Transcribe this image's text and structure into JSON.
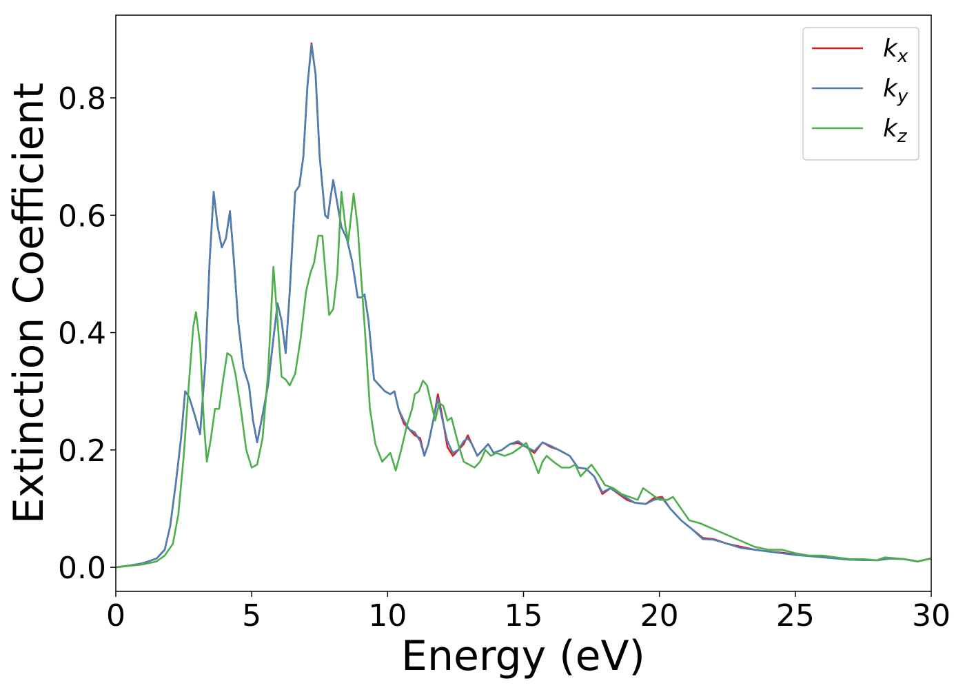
{
  "chart_data": {
    "type": "line",
    "xlabel": "Energy (eV)",
    "ylabel": "Extinction Coefficient",
    "xlim": [
      0,
      30
    ],
    "ylim": [
      -0.041,
      0.941
    ],
    "xticks": [
      0,
      5,
      10,
      15,
      20,
      25,
      30
    ],
    "yticks": [
      {
        "value": 0,
        "label": "0.0"
      },
      0.2,
      0.4,
      0.6,
      0.8
    ],
    "legend": "upper right",
    "series": [
      {
        "name": "kx",
        "color": "#e41a1c",
        "x": [
          0,
          0.5,
          1,
          1.5,
          1.8,
          2.0,
          2.2,
          2.4,
          2.55,
          2.7,
          2.9,
          3.1,
          3.3,
          3.45,
          3.6,
          3.75,
          3.9,
          4.05,
          4.2,
          4.35,
          4.5,
          4.7,
          4.9,
          5.05,
          5.2,
          5.4,
          5.6,
          5.8,
          5.95,
          6.1,
          6.25,
          6.4,
          6.6,
          6.75,
          6.9,
          7.05,
          7.2,
          7.35,
          7.5,
          7.7,
          7.8,
          7.9,
          8.0,
          8.15,
          8.3,
          8.5,
          8.7,
          8.9,
          9.05,
          9.15,
          9.3,
          9.5,
          9.7,
          9.9,
          10.1,
          10.25,
          10.4,
          10.6,
          10.8,
          11.0,
          11.2,
          11.35,
          11.5,
          11.7,
          11.85,
          12.0,
          12.2,
          12.4,
          12.6,
          12.8,
          12.95,
          13.1,
          13.3,
          13.5,
          13.7,
          13.9,
          14.2,
          14.5,
          14.8,
          15.1,
          15.4,
          15.7,
          16.0,
          16.3,
          16.7,
          17.0,
          17.3,
          17.6,
          17.9,
          18.2,
          18.5,
          18.8,
          19.1,
          19.5,
          19.8,
          20.1,
          20.4,
          20.8,
          21.2,
          21.6,
          22.0,
          22.5,
          23.0,
          23.5,
          24,
          24.5,
          25,
          26,
          27,
          28,
          28.5,
          29,
          29.5,
          30
        ],
        "values": [
          0,
          0.003,
          0.007,
          0.015,
          0.03,
          0.07,
          0.14,
          0.22,
          0.3,
          0.29,
          0.26,
          0.227,
          0.35,
          0.52,
          0.64,
          0.58,
          0.545,
          0.56,
          0.607,
          0.52,
          0.42,
          0.34,
          0.31,
          0.25,
          0.213,
          0.26,
          0.31,
          0.39,
          0.45,
          0.42,
          0.365,
          0.47,
          0.64,
          0.65,
          0.7,
          0.82,
          0.893,
          0.84,
          0.7,
          0.6,
          0.595,
          0.63,
          0.66,
          0.62,
          0.58,
          0.56,
          0.52,
          0.46,
          0.46,
          0.465,
          0.42,
          0.32,
          0.31,
          0.3,
          0.295,
          0.3,
          0.27,
          0.245,
          0.235,
          0.225,
          0.22,
          0.19,
          0.21,
          0.255,
          0.295,
          0.26,
          0.205,
          0.19,
          0.2,
          0.21,
          0.225,
          0.21,
          0.19,
          0.2,
          0.21,
          0.195,
          0.2,
          0.21,
          0.212,
          0.205,
          0.195,
          0.213,
          0.205,
          0.2,
          0.19,
          0.17,
          0.168,
          0.155,
          0.125,
          0.135,
          0.125,
          0.115,
          0.11,
          0.108,
          0.118,
          0.12,
          0.1,
          0.08,
          0.065,
          0.05,
          0.048,
          0.04,
          0.035,
          0.03,
          0.027,
          0.025,
          0.022,
          0.018,
          0.013,
          0.012,
          0.015,
          0.014,
          0.01,
          0.015
        ]
      },
      {
        "name": "ky",
        "color": "#4a7fb5",
        "x": [
          0,
          0.5,
          1,
          1.5,
          1.8,
          2.0,
          2.2,
          2.4,
          2.55,
          2.7,
          2.9,
          3.1,
          3.3,
          3.45,
          3.6,
          3.75,
          3.9,
          4.05,
          4.2,
          4.35,
          4.5,
          4.7,
          4.9,
          5.05,
          5.2,
          5.4,
          5.6,
          5.8,
          5.95,
          6.1,
          6.25,
          6.4,
          6.6,
          6.75,
          6.9,
          7.05,
          7.2,
          7.35,
          7.5,
          7.7,
          7.8,
          7.9,
          8.0,
          8.15,
          8.3,
          8.5,
          8.7,
          8.9,
          9.05,
          9.15,
          9.3,
          9.5,
          9.7,
          9.9,
          10.1,
          10.25,
          10.4,
          10.6,
          10.8,
          11.0,
          11.2,
          11.35,
          11.5,
          11.7,
          11.85,
          12.0,
          12.2,
          12.4,
          12.6,
          12.8,
          12.95,
          13.1,
          13.3,
          13.5,
          13.7,
          13.9,
          14.2,
          14.5,
          14.8,
          15.1,
          15.4,
          15.7,
          16.0,
          16.3,
          16.7,
          17.0,
          17.3,
          17.6,
          17.9,
          18.2,
          18.5,
          18.8,
          19.1,
          19.5,
          19.8,
          20.1,
          20.4,
          20.8,
          21.2,
          21.6,
          22.0,
          22.5,
          23.0,
          23.5,
          24,
          24.5,
          25,
          26,
          27,
          28,
          28.5,
          29,
          29.5,
          30
        ],
        "values": [
          0,
          0.003,
          0.007,
          0.015,
          0.03,
          0.07,
          0.14,
          0.22,
          0.3,
          0.29,
          0.26,
          0.227,
          0.35,
          0.52,
          0.64,
          0.58,
          0.545,
          0.56,
          0.607,
          0.52,
          0.42,
          0.34,
          0.31,
          0.25,
          0.213,
          0.26,
          0.31,
          0.39,
          0.45,
          0.42,
          0.365,
          0.47,
          0.64,
          0.65,
          0.7,
          0.82,
          0.89,
          0.84,
          0.7,
          0.6,
          0.595,
          0.63,
          0.66,
          0.62,
          0.58,
          0.56,
          0.52,
          0.46,
          0.46,
          0.465,
          0.42,
          0.32,
          0.31,
          0.3,
          0.295,
          0.3,
          0.27,
          0.25,
          0.235,
          0.23,
          0.215,
          0.19,
          0.21,
          0.255,
          0.288,
          0.255,
          0.215,
          0.195,
          0.2,
          0.215,
          0.22,
          0.21,
          0.19,
          0.2,
          0.21,
          0.195,
          0.2,
          0.21,
          0.215,
          0.205,
          0.198,
          0.213,
          0.207,
          0.2,
          0.19,
          0.17,
          0.168,
          0.155,
          0.128,
          0.135,
          0.127,
          0.118,
          0.11,
          0.108,
          0.115,
          0.118,
          0.1,
          0.08,
          0.065,
          0.048,
          0.047,
          0.04,
          0.033,
          0.03,
          0.027,
          0.024,
          0.021,
          0.017,
          0.013,
          0.012,
          0.015,
          0.014,
          0.01,
          0.015
        ]
      },
      {
        "name": "kz",
        "color": "#4daf4a",
        "x": [
          0,
          1,
          1.5,
          1.8,
          2.1,
          2.3,
          2.5,
          2.7,
          2.85,
          2.95,
          3.1,
          3.25,
          3.35,
          3.5,
          3.65,
          3.8,
          3.95,
          4.1,
          4.25,
          4.4,
          4.6,
          4.8,
          5.0,
          5.2,
          5.4,
          5.6,
          5.8,
          5.95,
          6.1,
          6.25,
          6.4,
          6.6,
          6.8,
          7.0,
          7.15,
          7.3,
          7.45,
          7.6,
          7.7,
          7.85,
          8.0,
          8.15,
          8.3,
          8.45,
          8.55,
          8.75,
          8.9,
          9.05,
          9.2,
          9.35,
          9.55,
          9.8,
          10.0,
          10.1,
          10.3,
          10.5,
          10.7,
          10.9,
          11.0,
          11.15,
          11.3,
          11.45,
          11.6,
          11.75,
          11.9,
          12.05,
          12.2,
          12.35,
          12.6,
          12.8,
          13.0,
          13.2,
          13.4,
          13.6,
          13.8,
          14.0,
          14.3,
          14.6,
          14.9,
          15.1,
          15.3,
          15.55,
          15.7,
          15.85,
          16.1,
          16.4,
          16.7,
          16.9,
          17.1,
          17.3,
          17.5,
          17.8,
          18.0,
          18.3,
          18.6,
          18.9,
          19.2,
          19.4,
          19.7,
          20.0,
          20.3,
          20.5,
          20.8,
          21.1,
          21.5,
          22.0,
          22.5,
          23,
          23.5,
          24,
          24.5,
          25,
          25.5,
          26,
          26.5,
          27,
          27.5,
          28,
          28.3,
          29,
          29.5,
          30
        ],
        "values": [
          0,
          0.005,
          0.01,
          0.02,
          0.04,
          0.09,
          0.19,
          0.32,
          0.41,
          0.435,
          0.38,
          0.24,
          0.18,
          0.22,
          0.27,
          0.27,
          0.32,
          0.365,
          0.36,
          0.33,
          0.27,
          0.2,
          0.17,
          0.175,
          0.22,
          0.33,
          0.512,
          0.42,
          0.325,
          0.32,
          0.31,
          0.33,
          0.39,
          0.47,
          0.5,
          0.52,
          0.565,
          0.565,
          0.51,
          0.43,
          0.44,
          0.5,
          0.64,
          0.58,
          0.555,
          0.637,
          0.58,
          0.48,
          0.38,
          0.27,
          0.21,
          0.18,
          0.19,
          0.195,
          0.165,
          0.2,
          0.24,
          0.27,
          0.295,
          0.3,
          0.318,
          0.31,
          0.28,
          0.25,
          0.28,
          0.275,
          0.25,
          0.255,
          0.21,
          0.18,
          0.175,
          0.17,
          0.18,
          0.2,
          0.19,
          0.195,
          0.19,
          0.195,
          0.205,
          0.212,
          0.19,
          0.16,
          0.18,
          0.19,
          0.18,
          0.17,
          0.17,
          0.175,
          0.155,
          0.165,
          0.175,
          0.155,
          0.14,
          0.135,
          0.125,
          0.12,
          0.115,
          0.135,
          0.125,
          0.115,
          0.115,
          0.12,
          0.1,
          0.08,
          0.075,
          0.065,
          0.055,
          0.045,
          0.035,
          0.03,
          0.03,
          0.024,
          0.02,
          0.02,
          0.017,
          0.014,
          0.014,
          0.012,
          0.017,
          0.014,
          0.01,
          0.015
        ]
      }
    ]
  }
}
